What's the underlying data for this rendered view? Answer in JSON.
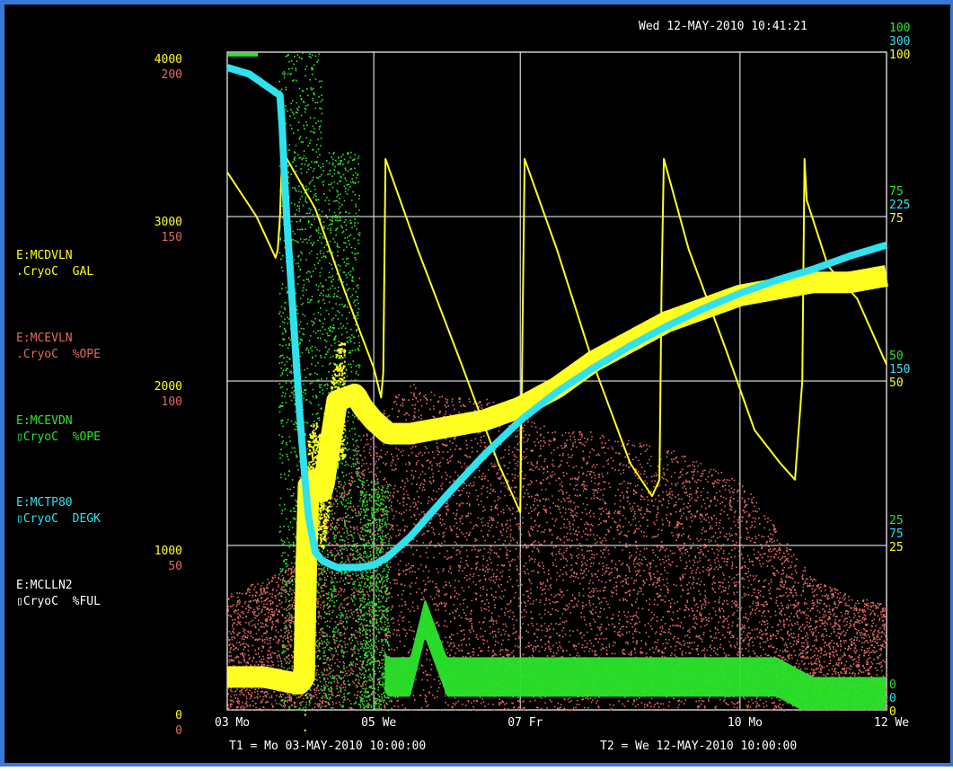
{
  "header": {
    "timestamp": "Wed 12-MAY-2010 10:41:21"
  },
  "footer": {
    "t1": "T1 = Mo 03-MAY-2010 10:00:00",
    "t2": "T2 = We 12-MAY-2010 10:00:00"
  },
  "colors": {
    "background": "#000000",
    "grid": "#ffffff",
    "frame": "#3a78d8",
    "yellow": "#ffff22",
    "red": "#e06a63",
    "green": "#2be62b",
    "cyan": "#2ee3ee",
    "text": "#ffffff"
  },
  "chart_data": {
    "type": "scatter",
    "x_ticks": [
      "03 Mo",
      "05 We",
      "07 Fr",
      "10 Mo",
      "12 We"
    ],
    "x_tick_days": [
      0,
      2,
      4,
      7,
      9
    ],
    "x_range_days": [
      0,
      9
    ],
    "grid": true,
    "legend_position": "left",
    "left_axes": [
      {
        "ticks": [
          "4000",
          "3000",
          "2000",
          "1000",
          "0"
        ],
        "values": [
          4000,
          3000,
          2000,
          1000,
          0
        ],
        "color": "#ffff22"
      },
      {
        "ticks": [
          "200",
          "150",
          "100",
          "50",
          "0"
        ],
        "values": [
          200,
          150,
          100,
          50,
          0
        ],
        "color": "#e06a63"
      }
    ],
    "right_axes": [
      {
        "ticks": [
          "100",
          "75",
          "50",
          "25",
          "0"
        ],
        "values": [
          100,
          75,
          50,
          25,
          0
        ],
        "color": "#2be62b"
      },
      {
        "ticks": [
          "300",
          "225",
          "150",
          "75",
          "0"
        ],
        "values": [
          300,
          225,
          150,
          75,
          0
        ],
        "color": "#2ee3ee"
      },
      {
        "ticks": [
          "100",
          "75",
          "50",
          "25",
          "0"
        ],
        "values": [
          100,
          75,
          50,
          25,
          0
        ],
        "color": "#ffff22"
      }
    ],
    "series": [
      {
        "name": "E:MCDVLN",
        "desc": ".CryoC  GAL",
        "color": "#ffff22",
        "style": "sawtooth",
        "axis": "left 0-4000",
        "x": [
          0,
          0.4,
          0.66,
          0.69,
          0.72,
          0.75,
          1.2,
          1.6,
          2.0,
          2.1,
          2.13,
          2.16,
          2.6,
          3.2,
          3.7,
          3.9,
          4.0,
          4.03,
          4.06,
          4.5,
          5.0,
          5.5,
          5.8,
          5.9,
          5.93,
          5.96,
          6.3,
          6.8,
          7.2,
          7.55,
          7.75,
          7.85,
          7.88,
          7.91,
          8.2,
          8.6,
          9.0
        ],
        "y": [
          3270,
          3000,
          2750,
          2800,
          3000,
          3400,
          3050,
          2550,
          2080,
          1900,
          2050,
          3350,
          2800,
          2100,
          1500,
          1300,
          1200,
          2300,
          3350,
          2800,
          2100,
          1500,
          1300,
          1400,
          2600,
          3350,
          2800,
          2200,
          1700,
          1500,
          1400,
          2000,
          3350,
          3100,
          2700,
          2500,
          2100
        ]
      },
      {
        "name": "E:MCEVLN",
        "desc": ".CryoC  %OPE",
        "color": "#e06a63",
        "style": "noise band",
        "axis": "left 0-200",
        "x": [
          0,
          0.5,
          1.0,
          1.5,
          2.0,
          2.5,
          3.0,
          3.5,
          4.0,
          4.5,
          5.0,
          5.5,
          6.0,
          6.5,
          7.0,
          7.5,
          8.0,
          8.5,
          9.0
        ],
        "y": [
          35,
          40,
          45,
          70,
          90,
          100,
          95,
          95,
          90,
          85,
          85,
          82,
          80,
          75,
          70,
          55,
          40,
          35,
          32
        ]
      },
      {
        "name": "E:MCEVDN",
        "desc": "▯CryoC  %OPE",
        "color": "#2be62b",
        "style": "noise then flat",
        "axis": "right 0-100",
        "x": [
          0,
          0.4,
          0.8,
          1.0,
          1.2,
          1.5,
          1.8,
          2.0,
          2.2,
          2.5,
          2.7,
          3.0,
          4.0,
          5.0,
          6.0,
          7.0,
          7.5,
          8.0,
          8.5,
          9.0
        ],
        "y": [
          100,
          100,
          99,
          60,
          30,
          20,
          15,
          8,
          5,
          5,
          14,
          5,
          5,
          5,
          5,
          5,
          5,
          2,
          2,
          2
        ]
      },
      {
        "name": "E:MCTP80",
        "desc": "▯CryoC  DEGK",
        "color": "#2ee3ee",
        "style": "line",
        "axis": "right 0-300",
        "x": [
          0,
          0.3,
          0.73,
          0.8,
          0.9,
          1.0,
          1.1,
          1.2,
          1.3,
          1.5,
          1.8,
          2.0,
          2.2,
          2.5,
          3.0,
          3.5,
          4.0,
          4.5,
          5.0,
          5.5,
          6.0,
          6.5,
          7.0,
          7.5,
          8.0,
          8.5,
          9.0
        ],
        "y": [
          293,
          290,
          280,
          230,
          180,
          130,
          90,
          72,
          68,
          65,
          65,
          66,
          70,
          79,
          98,
          116,
          132,
          145,
          156,
          166,
          175,
          183,
          190,
          196,
          201,
          207,
          212
        ]
      },
      {
        "name": "E:MCLLN2",
        "desc": "▯CryoC  %FUL",
        "color": "#ffff22",
        "style": "thick band",
        "axis": "right 0-100",
        "x": [
          0,
          0.5,
          0.95,
          1.0,
          1.05,
          1.1,
          1.2,
          1.3,
          1.5,
          1.75,
          1.85,
          2.0,
          2.2,
          2.5,
          3.0,
          3.5,
          4.0,
          4.5,
          5.0,
          5.5,
          6.0,
          6.5,
          7.0,
          7.5,
          8.0,
          8.5,
          9.0
        ],
        "y": [
          5,
          5,
          4,
          4,
          5,
          34,
          35,
          33,
          47,
          48,
          46,
          44,
          42,
          42,
          43,
          44,
          46,
          49,
          53,
          56,
          59,
          61,
          63,
          64,
          65,
          65,
          66
        ]
      }
    ]
  }
}
